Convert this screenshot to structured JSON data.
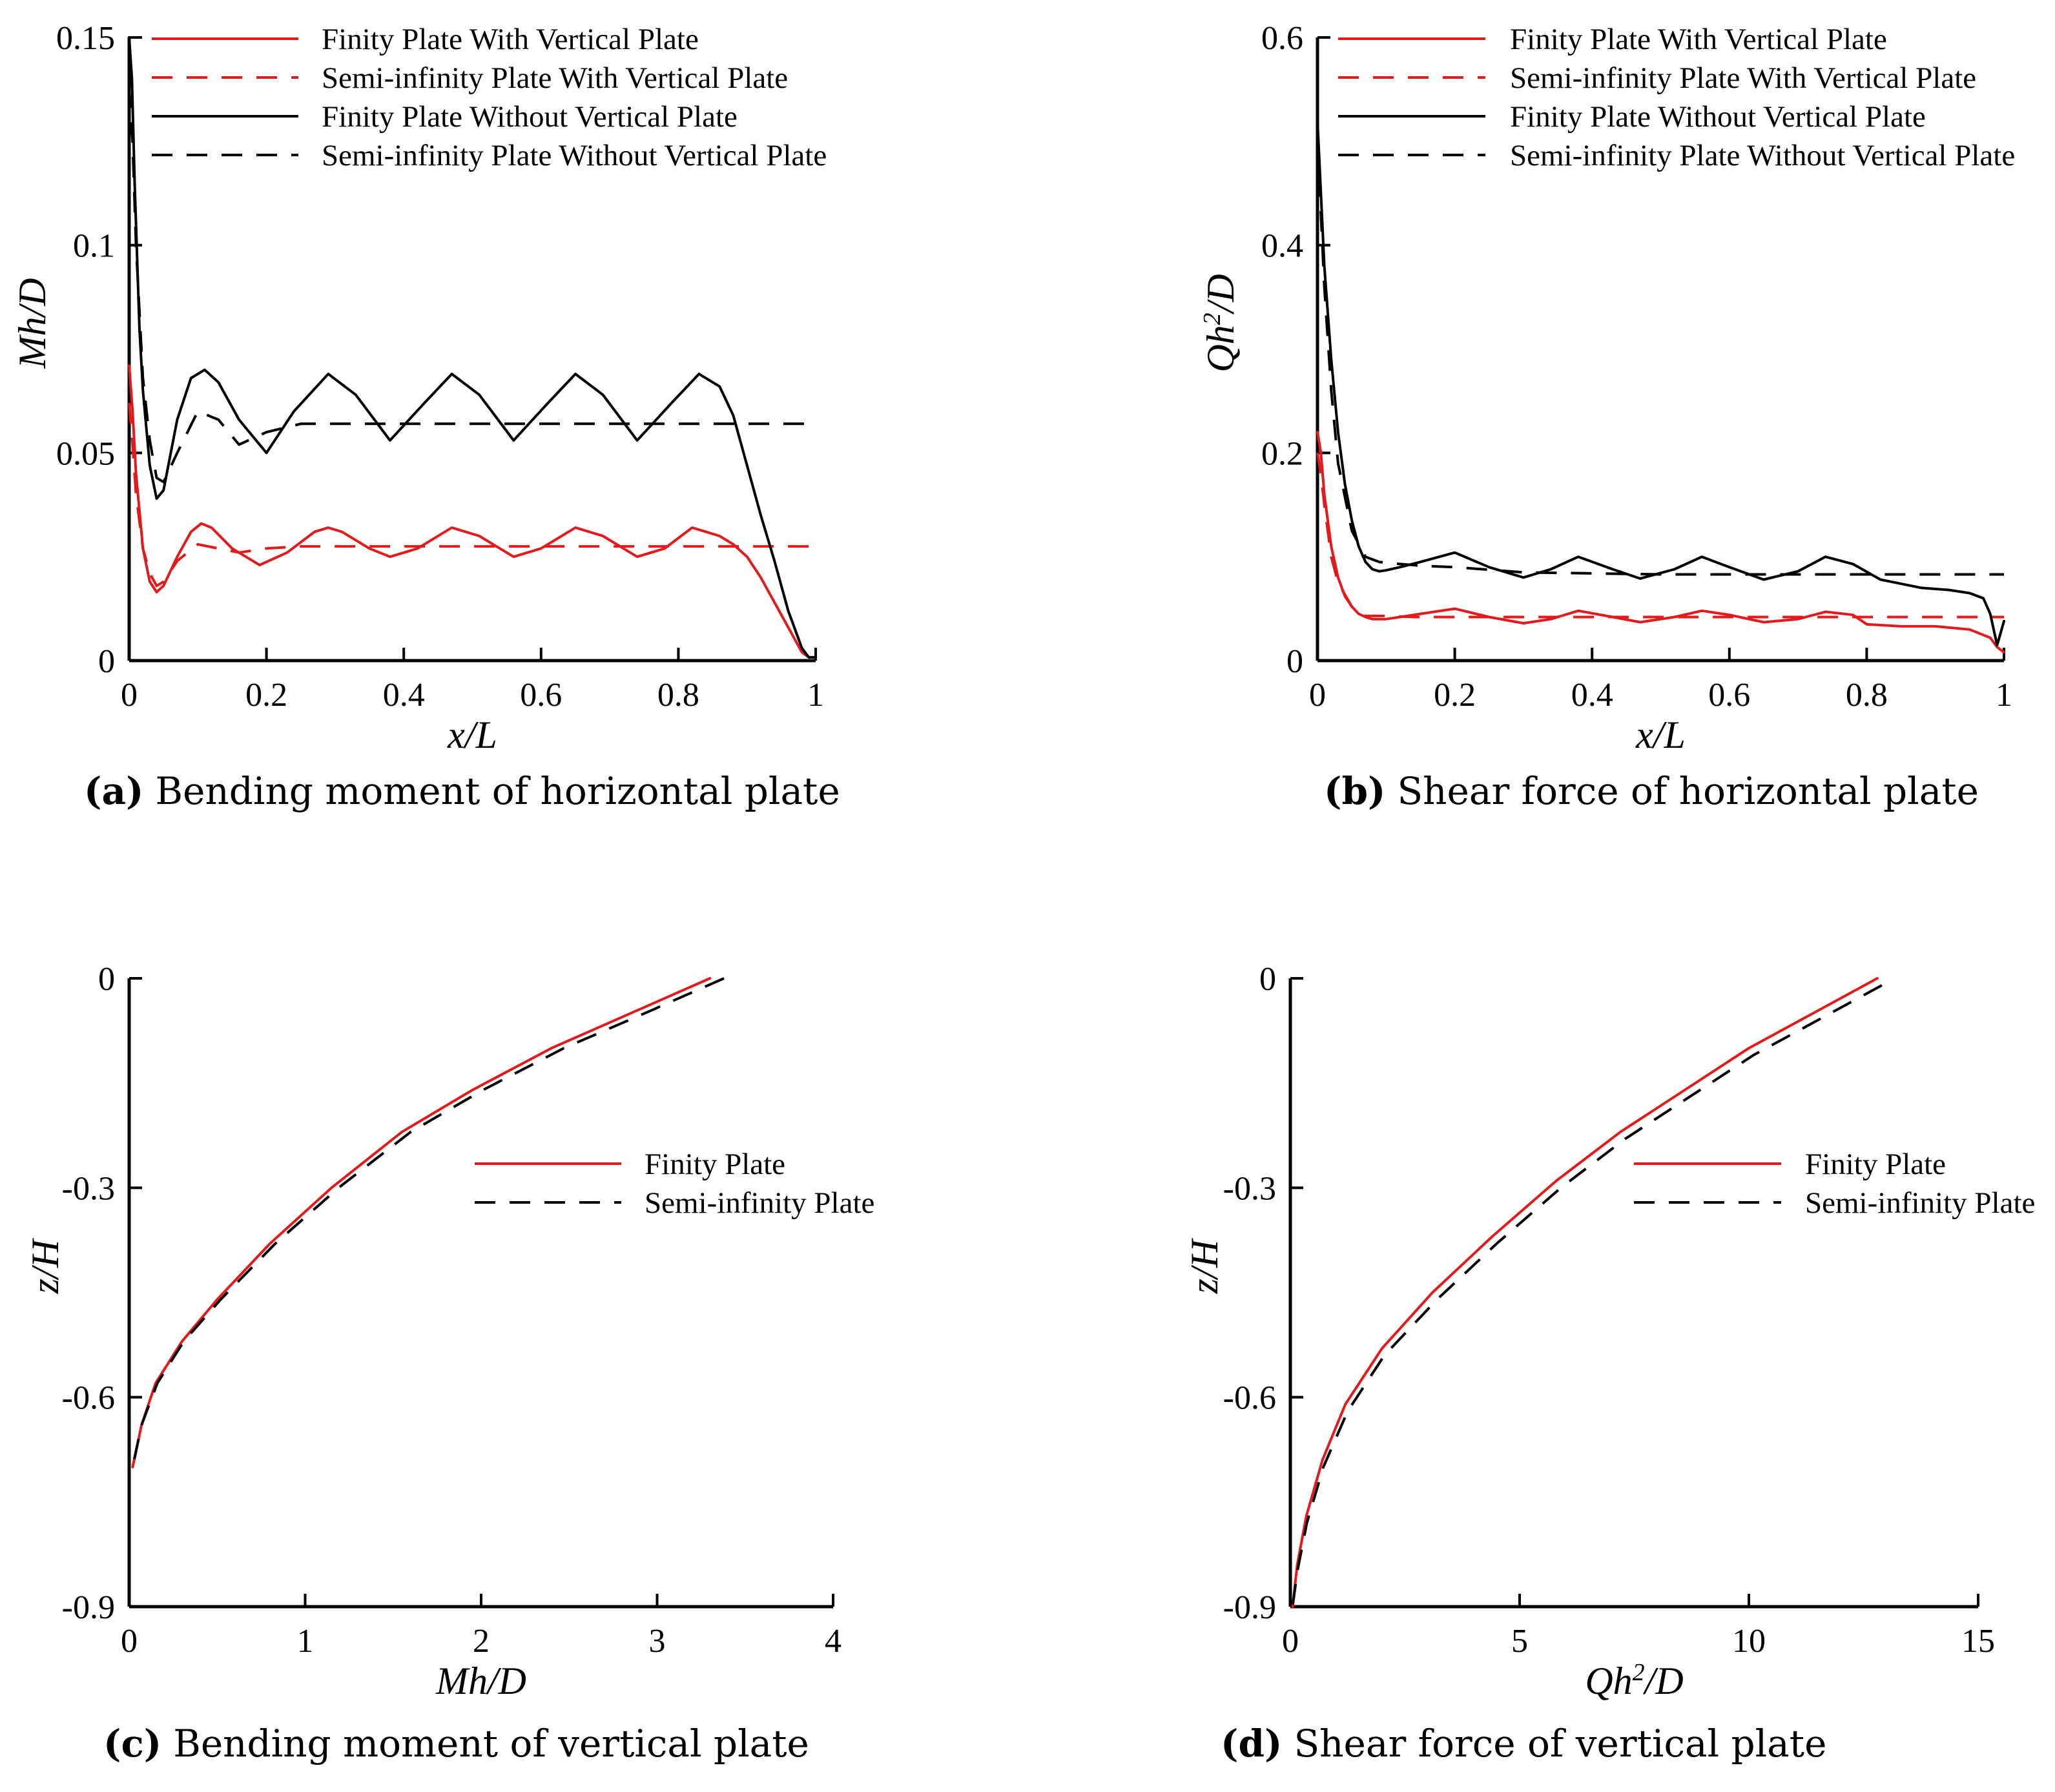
{
  "chart_data": [
    {
      "id": "a",
      "type": "line",
      "caption_tag": "(a)",
      "caption": "Bending moment of horizontal plate",
      "xlabel": "x/L",
      "ylabel": "Mh/D",
      "xlim": [
        0,
        1
      ],
      "ylim": [
        0,
        0.15
      ],
      "xticks": [
        0,
        0.2,
        0.4,
        0.6,
        0.8,
        1
      ],
      "xtick_labels": [
        "0",
        "0.2",
        "0.4",
        "0.6",
        "0.8",
        "1"
      ],
      "yticks": [
        0,
        0.05,
        0.1,
        0.15
      ],
      "ytick_labels": [
        "0",
        "0.05",
        "0.1",
        "0.15"
      ],
      "legend_position": "top-right",
      "series": [
        {
          "name": "Finity Plate With Vertical Plate",
          "color": "#e31a1c",
          "dash": "solid",
          "x": [
            0,
            0.005,
            0.01,
            0.02,
            0.03,
            0.04,
            0.05,
            0.07,
            0.09,
            0.105,
            0.12,
            0.15,
            0.19,
            0.23,
            0.27,
            0.29,
            0.31,
            0.35,
            0.38,
            0.42,
            0.47,
            0.51,
            0.56,
            0.6,
            0.65,
            0.69,
            0.74,
            0.78,
            0.82,
            0.86,
            0.88,
            0.9,
            0.92,
            0.94,
            0.96,
            0.98,
            0.99,
            1
          ],
          "y": [
            0.071,
            0.06,
            0.045,
            0.027,
            0.019,
            0.0165,
            0.018,
            0.025,
            0.031,
            0.033,
            0.032,
            0.027,
            0.023,
            0.026,
            0.031,
            0.032,
            0.031,
            0.027,
            0.025,
            0.027,
            0.032,
            0.03,
            0.025,
            0.027,
            0.032,
            0.03,
            0.025,
            0.027,
            0.032,
            0.03,
            0.028,
            0.025,
            0.02,
            0.014,
            0.008,
            0.002,
            0.0008,
            0.0008
          ]
        },
        {
          "name": "Semi-infinity Plate With Vertical Plate",
          "color": "#e31a1c",
          "dash": "dashed",
          "x": [
            0,
            0.005,
            0.01,
            0.02,
            0.03,
            0.04,
            0.05,
            0.07,
            0.1,
            0.13,
            0.16,
            0.2,
            0.25,
            0.3,
            0.4,
            0.5,
            0.6,
            0.7,
            0.8,
            0.9,
            1
          ],
          "y": [
            0.062,
            0.052,
            0.04,
            0.027,
            0.021,
            0.018,
            0.019,
            0.024,
            0.028,
            0.027,
            0.026,
            0.027,
            0.0275,
            0.0275,
            0.0275,
            0.0275,
            0.0275,
            0.0275,
            0.0275,
            0.0275,
            0.0275
          ]
        },
        {
          "name": "Finity Plate Without Vertical Plate",
          "color": "#000000",
          "dash": "solid",
          "x": [
            0,
            0.004,
            0.008,
            0.015,
            0.02,
            0.03,
            0.04,
            0.05,
            0.07,
            0.09,
            0.11,
            0.13,
            0.16,
            0.2,
            0.24,
            0.29,
            0.33,
            0.38,
            0.43,
            0.47,
            0.51,
            0.56,
            0.61,
            0.65,
            0.69,
            0.74,
            0.79,
            0.83,
            0.86,
            0.88,
            0.9,
            0.92,
            0.94,
            0.96,
            0.98,
            0.99,
            1
          ],
          "y": [
            0.15,
            0.14,
            0.115,
            0.08,
            0.065,
            0.047,
            0.039,
            0.041,
            0.058,
            0.068,
            0.07,
            0.067,
            0.058,
            0.05,
            0.06,
            0.069,
            0.064,
            0.053,
            0.062,
            0.069,
            0.064,
            0.053,
            0.062,
            0.069,
            0.064,
            0.053,
            0.062,
            0.069,
            0.066,
            0.059,
            0.047,
            0.035,
            0.024,
            0.012,
            0.003,
            0.0008,
            0.0008
          ]
        },
        {
          "name": "Semi-infinity Plate Without Vertical Plate",
          "color": "#000000",
          "dash": "dashed",
          "x": [
            0,
            0.005,
            0.01,
            0.02,
            0.03,
            0.04,
            0.05,
            0.07,
            0.1,
            0.13,
            0.16,
            0.2,
            0.25,
            0.3,
            0.4,
            0.5,
            0.6,
            0.7,
            0.8,
            0.9,
            1
          ],
          "y": [
            0.138,
            0.125,
            0.1,
            0.068,
            0.053,
            0.044,
            0.043,
            0.05,
            0.06,
            0.058,
            0.052,
            0.055,
            0.057,
            0.057,
            0.057,
            0.057,
            0.057,
            0.057,
            0.057,
            0.057,
            0.057
          ]
        }
      ]
    },
    {
      "id": "b",
      "type": "line",
      "caption_tag": "(b)",
      "caption": "Shear force of horizontal plate",
      "xlabel": "x/L",
      "ylabel": "Qh²/D",
      "xlim": [
        0,
        1
      ],
      "ylim": [
        0,
        0.6
      ],
      "xticks": [
        0,
        0.2,
        0.4,
        0.6,
        0.8,
        1
      ],
      "xtick_labels": [
        "0",
        "0.2",
        "0.4",
        "0.6",
        "0.8",
        "1"
      ],
      "yticks": [
        0,
        0.2,
        0.4,
        0.6
      ],
      "ytick_labels": [
        "0",
        "0.2",
        "0.4",
        "0.6"
      ],
      "legend_position": "top-right",
      "series": [
        {
          "name": "Finity Plate With Vertical Plate",
          "color": "#e31a1c",
          "dash": "solid",
          "x": [
            0,
            0.005,
            0.01,
            0.02,
            0.03,
            0.04,
            0.05,
            0.06,
            0.07,
            0.08,
            0.1,
            0.12,
            0.15,
            0.2,
            0.25,
            0.3,
            0.34,
            0.38,
            0.43,
            0.47,
            0.52,
            0.56,
            0.6,
            0.65,
            0.7,
            0.74,
            0.78,
            0.8,
            0.85,
            0.9,
            0.95,
            0.98,
            0.99,
            1
          ],
          "y": [
            0.22,
            0.2,
            0.16,
            0.11,
            0.08,
            0.062,
            0.052,
            0.045,
            0.042,
            0.04,
            0.04,
            0.042,
            0.045,
            0.05,
            0.042,
            0.036,
            0.04,
            0.048,
            0.042,
            0.037,
            0.042,
            0.048,
            0.044,
            0.037,
            0.04,
            0.047,
            0.044,
            0.035,
            0.033,
            0.033,
            0.03,
            0.022,
            0.013,
            0.008
          ]
        },
        {
          "name": "Semi-infinity Plate With Vertical Plate",
          "color": "#e31a1c",
          "dash": "dashed",
          "x": [
            0,
            0.005,
            0.01,
            0.02,
            0.03,
            0.05,
            0.07,
            0.1,
            0.14,
            0.2,
            0.3,
            0.4,
            0.5,
            0.6,
            0.7,
            0.8,
            0.9,
            1
          ],
          "y": [
            0.2,
            0.18,
            0.15,
            0.1,
            0.075,
            0.052,
            0.043,
            0.043,
            0.042,
            0.042,
            0.042,
            0.042,
            0.042,
            0.042,
            0.042,
            0.042,
            0.042,
            0.042
          ]
        },
        {
          "name": "Finity Plate Without Vertical Plate",
          "color": "#000000",
          "dash": "solid",
          "x": [
            0,
            0.005,
            0.01,
            0.02,
            0.03,
            0.04,
            0.05,
            0.06,
            0.07,
            0.08,
            0.09,
            0.1,
            0.12,
            0.15,
            0.2,
            0.25,
            0.3,
            0.34,
            0.38,
            0.43,
            0.47,
            0.52,
            0.56,
            0.6,
            0.65,
            0.7,
            0.74,
            0.78,
            0.82,
            0.88,
            0.92,
            0.95,
            0.97,
            0.98,
            0.99,
            1
          ],
          "y": [
            0.52,
            0.45,
            0.38,
            0.29,
            0.22,
            0.17,
            0.135,
            0.11,
            0.095,
            0.088,
            0.086,
            0.087,
            0.09,
            0.095,
            0.104,
            0.09,
            0.08,
            0.088,
            0.1,
            0.088,
            0.079,
            0.088,
            0.1,
            0.09,
            0.078,
            0.086,
            0.1,
            0.093,
            0.078,
            0.07,
            0.068,
            0.065,
            0.06,
            0.045,
            0.015,
            0.038
          ]
        },
        {
          "name": "Semi-infinity Plate Without Vertical Plate",
          "color": "#000000",
          "dash": "dashed",
          "x": [
            0,
            0.005,
            0.01,
            0.02,
            0.03,
            0.05,
            0.07,
            0.09,
            0.12,
            0.16,
            0.2,
            0.3,
            0.4,
            0.5,
            0.6,
            0.7,
            0.8,
            0.9,
            1
          ],
          "y": [
            0.5,
            0.43,
            0.36,
            0.26,
            0.19,
            0.125,
            0.1,
            0.095,
            0.093,
            0.091,
            0.09,
            0.085,
            0.084,
            0.083,
            0.083,
            0.083,
            0.083,
            0.083,
            0.083
          ]
        }
      ]
    },
    {
      "id": "c",
      "type": "line",
      "caption_tag": "(c)",
      "caption": "Bending moment of vertical plate",
      "xlabel": "Mh/D",
      "ylabel": "z/H",
      "xlim": [
        0,
        4
      ],
      "ylim": [
        -0.9,
        0
      ],
      "xticks": [
        0,
        1,
        2,
        3,
        4
      ],
      "xtick_labels": [
        "0",
        "1",
        "2",
        "3",
        "4"
      ],
      "yticks": [
        0,
        -0.3,
        -0.6,
        -0.9
      ],
      "ytick_labels": [
        "0",
        "-0.3",
        "-0.6",
        "-0.9"
      ],
      "legend_position": "center-right",
      "series": [
        {
          "name": "Finity Plate",
          "color": "#e31a1c",
          "dash": "solid",
          "x": [
            3.3,
            2.85,
            2.4,
            1.95,
            1.55,
            1.15,
            0.8,
            0.5,
            0.3,
            0.15,
            0.07,
            0.02
          ],
          "y": [
            0,
            -0.05,
            -0.1,
            -0.16,
            -0.22,
            -0.3,
            -0.38,
            -0.46,
            -0.52,
            -0.58,
            -0.64,
            -0.7
          ]
        },
        {
          "name": "Semi-infinity Plate",
          "color": "#000000",
          "dash": "dashed",
          "x": [
            3.38,
            2.93,
            2.47,
            2.01,
            1.6,
            1.19,
            0.83,
            0.52,
            0.31,
            0.16,
            0.07,
            0.02
          ],
          "y": [
            0,
            -0.05,
            -0.1,
            -0.16,
            -0.22,
            -0.3,
            -0.38,
            -0.46,
            -0.52,
            -0.58,
            -0.64,
            -0.7
          ]
        }
      ]
    },
    {
      "id": "d",
      "type": "line",
      "caption_tag": "(d)",
      "caption": "Shear force of vertical plate",
      "xlabel": "Qh²/D",
      "ylabel": "z/H",
      "xlim": [
        0,
        15
      ],
      "ylim": [
        -0.9,
        0
      ],
      "xticks": [
        0,
        5,
        10,
        15
      ],
      "xtick_labels": [
        "0",
        "5",
        "10",
        "15"
      ],
      "yticks": [
        0,
        -0.3,
        -0.6,
        -0.9
      ],
      "ytick_labels": [
        "0",
        "-0.3",
        "-0.6",
        "-0.9"
      ],
      "legend_position": "center-right",
      "series": [
        {
          "name": "Finity Plate",
          "color": "#e31a1c",
          "dash": "solid",
          "x": [
            12.8,
            11.4,
            10,
            8.6,
            7.2,
            5.8,
            4.4,
            3.1,
            2,
            1.2,
            0.7,
            0.35,
            0.15,
            0.05
          ],
          "y": [
            0,
            -0.05,
            -0.1,
            -0.16,
            -0.22,
            -0.29,
            -0.37,
            -0.45,
            -0.53,
            -0.61,
            -0.69,
            -0.77,
            -0.84,
            -0.9
          ]
        },
        {
          "name": "Semi-infinity Plate",
          "color": "#000000",
          "dash": "dashed",
          "x": [
            12.9,
            11.5,
            10.1,
            8.7,
            7.3,
            5.9,
            4.5,
            3.2,
            2.05,
            1.25,
            0.72,
            0.36,
            0.15,
            0.05
          ],
          "y": [
            -0.01,
            -0.06,
            -0.11,
            -0.17,
            -0.23,
            -0.3,
            -0.38,
            -0.46,
            -0.54,
            -0.62,
            -0.7,
            -0.78,
            -0.85,
            -0.9
          ]
        }
      ]
    }
  ]
}
